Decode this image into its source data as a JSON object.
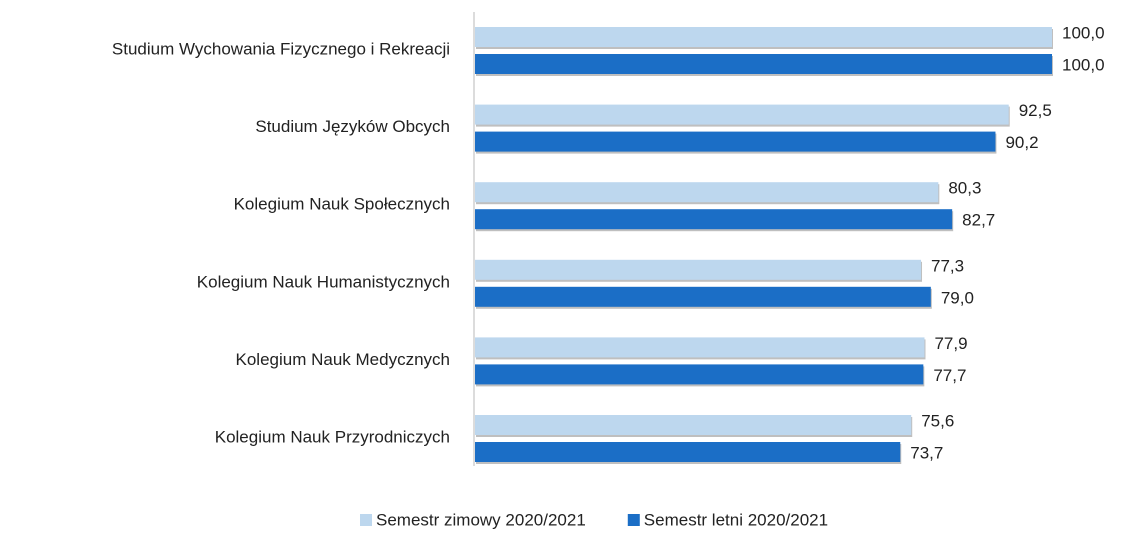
{
  "chart_data": {
    "type": "bar",
    "orientation": "horizontal",
    "categories": [
      "Studium Wychowania Fizycznego i Rekreacji",
      "Studium Języków Obcych",
      "Kolegium Nauk Społecznych",
      "Kolegium Nauk Humanistycznych",
      "Kolegium Nauk Medycznych",
      "Kolegium Nauk Przyrodniczych"
    ],
    "series": [
      {
        "name": "Semestr zimowy 2020/2021",
        "color": "#bdd7ee",
        "values": [
          100.0,
          92.5,
          80.3,
          77.3,
          77.9,
          75.6
        ],
        "value_labels": [
          "100,0",
          "92,5",
          "80,3",
          "77,3",
          "77,9",
          "75,6"
        ]
      },
      {
        "name": "Semestr letni 2020/2021",
        "color": "#1b6ec6",
        "values": [
          100.0,
          90.2,
          82.7,
          79.0,
          77.7,
          73.7
        ],
        "value_labels": [
          "100,0",
          "90,2",
          "82,7",
          "79,0",
          "77,7",
          "73,7"
        ]
      }
    ],
    "xlim": [
      0,
      100
    ],
    "legend": "bottom"
  }
}
